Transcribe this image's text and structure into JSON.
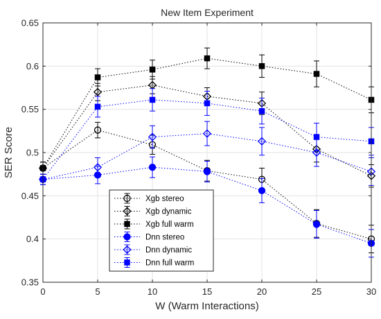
{
  "chart_data": {
    "type": "line",
    "title": "New Item Experiment",
    "xlabel": "W (Warm Interactions)",
    "ylabel": "SER Score",
    "x": [
      0,
      5,
      10,
      15,
      20,
      25,
      30
    ],
    "xlim": [
      0,
      30
    ],
    "ylim": [
      0.35,
      0.65
    ],
    "xticks": [
      "0",
      "5",
      "10",
      "15",
      "20",
      "25",
      "30"
    ],
    "yticks": [
      "0.35",
      "0.4",
      "0.45",
      "0.5",
      "0.55",
      "0.6",
      "0.65"
    ],
    "grid": true,
    "legend_position": "bottom-left",
    "series": [
      {
        "name": "Xgb stereo",
        "color": "#000000",
        "marker": "circle",
        "values": [
          0.482,
          0.526,
          0.509,
          0.479,
          0.469,
          0.418,
          0.4
        ],
        "err": [
          0.007,
          0.009,
          0.011,
          0.012,
          0.013,
          0.016,
          0.016
        ]
      },
      {
        "name": "Xgb dynamic",
        "color": "#000000",
        "marker": "diamond",
        "values": [
          0.482,
          0.57,
          0.578,
          0.565,
          0.557,
          0.504,
          0.473
        ],
        "err": [
          0.007,
          0.01,
          0.01,
          0.01,
          0.013,
          0.015,
          0.013
        ]
      },
      {
        "name": "Xgb full warm",
        "color": "#000000",
        "marker": "square",
        "values": [
          0.482,
          0.587,
          0.596,
          0.609,
          0.6,
          0.591,
          0.561
        ],
        "err": [
          0.007,
          0.01,
          0.011,
          0.012,
          0.013,
          0.015,
          0.015
        ]
      },
      {
        "name": "Dnn stereo",
        "color": "#0000FF",
        "marker": "circle",
        "values": [
          0.469,
          0.474,
          0.483,
          0.478,
          0.456,
          0.417,
          0.395
        ],
        "err": [
          0.006,
          0.01,
          0.012,
          0.012,
          0.014,
          0.016,
          0.016
        ]
      },
      {
        "name": "Dnn dynamic",
        "color": "#0000FF",
        "marker": "diamond",
        "values": [
          0.469,
          0.483,
          0.518,
          0.522,
          0.513,
          0.5,
          0.478
        ],
        "err": [
          0.006,
          0.011,
          0.013,
          0.014,
          0.016,
          0.016,
          0.016
        ]
      },
      {
        "name": "Dnn full warm",
        "color": "#0000FF",
        "marker": "square",
        "values": [
          0.469,
          0.553,
          0.561,
          0.557,
          0.548,
          0.518,
          0.513
        ],
        "err": [
          0.006,
          0.012,
          0.013,
          0.014,
          0.015,
          0.016,
          0.016
        ]
      }
    ]
  }
}
